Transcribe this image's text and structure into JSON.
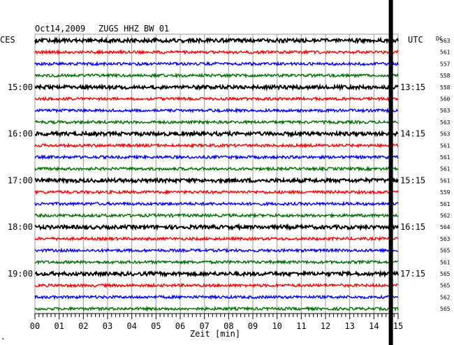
{
  "header": {
    "date": "Oct14,2009",
    "station": "ZUGS HHZ BW 01",
    "left_tz": "CES",
    "right_tz": "UTC",
    "dc_label": "DC"
  },
  "chart_data": {
    "type": "line",
    "title": "Oct14,2009  ZUGS HHZ BW 01",
    "xlabel": "Zeit [min]",
    "x_ticks": [
      "00",
      "01",
      "02",
      "03",
      "04",
      "05",
      "06",
      "07",
      "08",
      "09",
      "10",
      "11",
      "12",
      "13",
      "14",
      "15"
    ],
    "xlim": [
      0,
      15
    ],
    "left_time_labels": [
      {
        "row": 4,
        "text": "15:00"
      },
      {
        "row": 8,
        "text": "16:00"
      },
      {
        "row": 12,
        "text": "17:00"
      },
      {
        "row": 16,
        "text": "18:00"
      },
      {
        "row": 20,
        "text": "19:00"
      }
    ],
    "right_time_labels": [
      {
        "row": 4,
        "text": "13:15"
      },
      {
        "row": 8,
        "text": "14:15"
      },
      {
        "row": 12,
        "text": "15:15"
      },
      {
        "row": 16,
        "text": "16:15"
      },
      {
        "row": 20,
        "text": "17:15"
      }
    ],
    "trace_colors": [
      "#000000",
      "#ff0000",
      "#0000ff",
      "#007000"
    ],
    "dc_offsets": [
      563,
      561,
      557,
      558,
      558,
      560,
      563,
      563,
      563,
      561,
      561,
      561,
      561,
      559,
      561,
      562,
      564,
      563,
      565,
      561,
      565,
      565,
      562,
      565
    ],
    "event_marker_minute": 14.7
  }
}
